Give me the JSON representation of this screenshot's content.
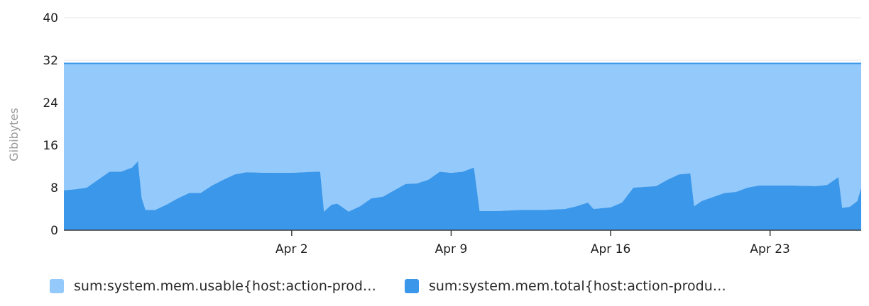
{
  "chart_data": {
    "type": "area",
    "ylabel": "Gibibytes",
    "ylim": [
      0,
      40
    ],
    "y_ticks": [
      "0",
      "8",
      "16",
      "24",
      "32",
      "40"
    ],
    "x_range": [
      "2024-03-23",
      "2024-04-27"
    ],
    "x_ticks": [
      {
        "label": "Apr 2",
        "date": "2024-04-02"
      },
      {
        "label": "Apr 9",
        "date": "2024-04-09"
      },
      {
        "label": "Apr 16",
        "date": "2024-04-16"
      },
      {
        "label": "Apr 23",
        "date": "2024-04-23"
      }
    ],
    "grid": true,
    "legend_position": "bottom",
    "series": [
      {
        "name": "sum:system.mem.usable{host:action-prod…",
        "color": "#93c9fb",
        "stacked_on": "sum:system.mem.total{host:action-produ…",
        "points": [
          [
            "2024-03-23",
            31.4
          ],
          [
            "2024-04-27",
            31.4
          ]
        ]
      },
      {
        "name": "sum:system.mem.total{host:action-produ…",
        "color": "#3b97ea",
        "points": [
          [
            "2024-03-23",
            7.5
          ],
          [
            "2024-03-23T12:00",
            7.7
          ],
          [
            "2024-03-24",
            8.0
          ],
          [
            "2024-03-24T12:00",
            9.5
          ],
          [
            "2024-03-25",
            11.0
          ],
          [
            "2024-03-25T12:00",
            11.0
          ],
          [
            "2024-03-26",
            11.8
          ],
          [
            "2024-03-26T06:00",
            13.0
          ],
          [
            "2024-03-26T10:00",
            6.0
          ],
          [
            "2024-03-26T14:00",
            3.8
          ],
          [
            "2024-03-27",
            3.8
          ],
          [
            "2024-03-27T12:00",
            4.8
          ],
          [
            "2024-03-28",
            6.0
          ],
          [
            "2024-03-28T12:00",
            7.0
          ],
          [
            "2024-03-29",
            7.0
          ],
          [
            "2024-03-29T12:00",
            8.4
          ],
          [
            "2024-03-30",
            9.5
          ],
          [
            "2024-03-30T12:00",
            10.5
          ],
          [
            "2024-03-31",
            10.9
          ],
          [
            "2024-04-01",
            10.8
          ],
          [
            "2024-04-02",
            10.8
          ],
          [
            "2024-04-03",
            11.0
          ],
          [
            "2024-04-03T06:00",
            11.0
          ],
          [
            "2024-04-03T10:00",
            3.5
          ],
          [
            "2024-04-03T18:00",
            4.8
          ],
          [
            "2024-04-04",
            5.0
          ],
          [
            "2024-04-04T12:00",
            3.5
          ],
          [
            "2024-04-05",
            4.5
          ],
          [
            "2024-04-05T12:00",
            6.0
          ],
          [
            "2024-04-06",
            6.3
          ],
          [
            "2024-04-06T12:00",
            7.5
          ],
          [
            "2024-04-07",
            8.7
          ],
          [
            "2024-04-07T12:00",
            8.8
          ],
          [
            "2024-04-08",
            9.5
          ],
          [
            "2024-04-08T12:00",
            11.0
          ],
          [
            "2024-04-09",
            10.8
          ],
          [
            "2024-04-09T12:00",
            11.0
          ],
          [
            "2024-04-10",
            11.8
          ],
          [
            "2024-04-10T06:00",
            3.6
          ],
          [
            "2024-04-11",
            3.6
          ],
          [
            "2024-04-12",
            3.8
          ],
          [
            "2024-04-13",
            3.8
          ],
          [
            "2024-04-14",
            4.0
          ],
          [
            "2024-04-14T12:00",
            4.5
          ],
          [
            "2024-04-15",
            5.2
          ],
          [
            "2024-04-15T06:00",
            4.0
          ],
          [
            "2024-04-16",
            4.3
          ],
          [
            "2024-04-16T12:00",
            5.2
          ],
          [
            "2024-04-17",
            8.0
          ],
          [
            "2024-04-18",
            8.3
          ],
          [
            "2024-04-18T12:00",
            9.5
          ],
          [
            "2024-04-19",
            10.5
          ],
          [
            "2024-04-19T12:00",
            10.7
          ],
          [
            "2024-04-19T16:00",
            4.5
          ],
          [
            "2024-04-20",
            5.5
          ],
          [
            "2024-04-21",
            7.0
          ],
          [
            "2024-04-21T12:00",
            7.2
          ],
          [
            "2024-04-22",
            8.0
          ],
          [
            "2024-04-22T12:00",
            8.4
          ],
          [
            "2024-04-23",
            8.4
          ],
          [
            "2024-04-24",
            8.4
          ],
          [
            "2024-04-25",
            8.3
          ],
          [
            "2024-04-25T12:00",
            8.5
          ],
          [
            "2024-04-26",
            10.0
          ],
          [
            "2024-04-26T04:00",
            4.2
          ],
          [
            "2024-04-26T12:00",
            4.4
          ],
          [
            "2024-04-26T20:00",
            5.5
          ],
          [
            "2024-04-27",
            8.0
          ]
        ]
      }
    ]
  }
}
